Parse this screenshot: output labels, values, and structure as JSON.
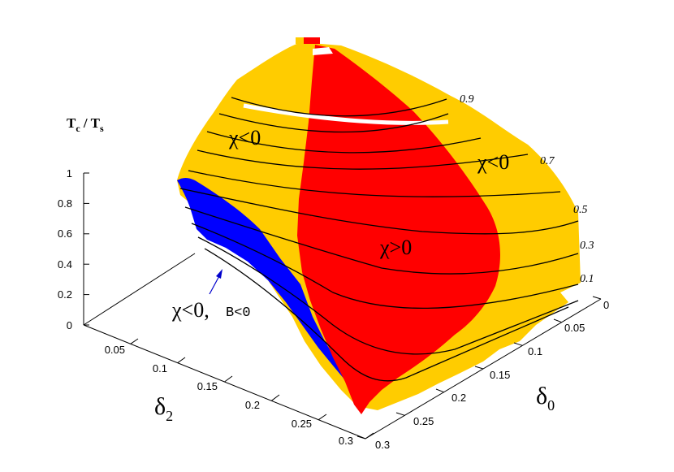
{
  "chart_data": {
    "type": "surface",
    "z_axis": {
      "label": "T",
      "label_sub": "c",
      "label_sep": " / T",
      "label_sub2": "s",
      "ticks": [
        "0",
        "0.2",
        "0.4",
        "0.6",
        "0.8",
        "1"
      ],
      "range": [
        0,
        1
      ]
    },
    "delta2_axis": {
      "label": "δ",
      "label_sub": "2",
      "ticks": [
        "0.05",
        "0.1",
        "0.15",
        "0.2",
        "0.25",
        "0.3"
      ],
      "range": [
        0,
        0.3
      ]
    },
    "delta0_axis": {
      "label": "δ",
      "label_sub": "0",
      "ticks": [
        "0",
        "0.05",
        "0.1",
        "0.15",
        "0.2",
        "0.25",
        "0.3"
      ],
      "range": [
        0,
        0.3
      ]
    },
    "contour_levels": [
      "0.9",
      "0.7",
      "0.5",
      "0.3",
      "0.1"
    ],
    "regions": [
      {
        "label": "χ<0",
        "color": "#ffcc00"
      },
      {
        "label": "χ<0",
        "color": "#ffcc00"
      },
      {
        "label": "χ>0",
        "color": "#ff0000"
      },
      {
        "label": "χ<0,",
        "label2": "B<0",
        "color": "#0000ff"
      }
    ],
    "grid": false,
    "legend": "none"
  }
}
